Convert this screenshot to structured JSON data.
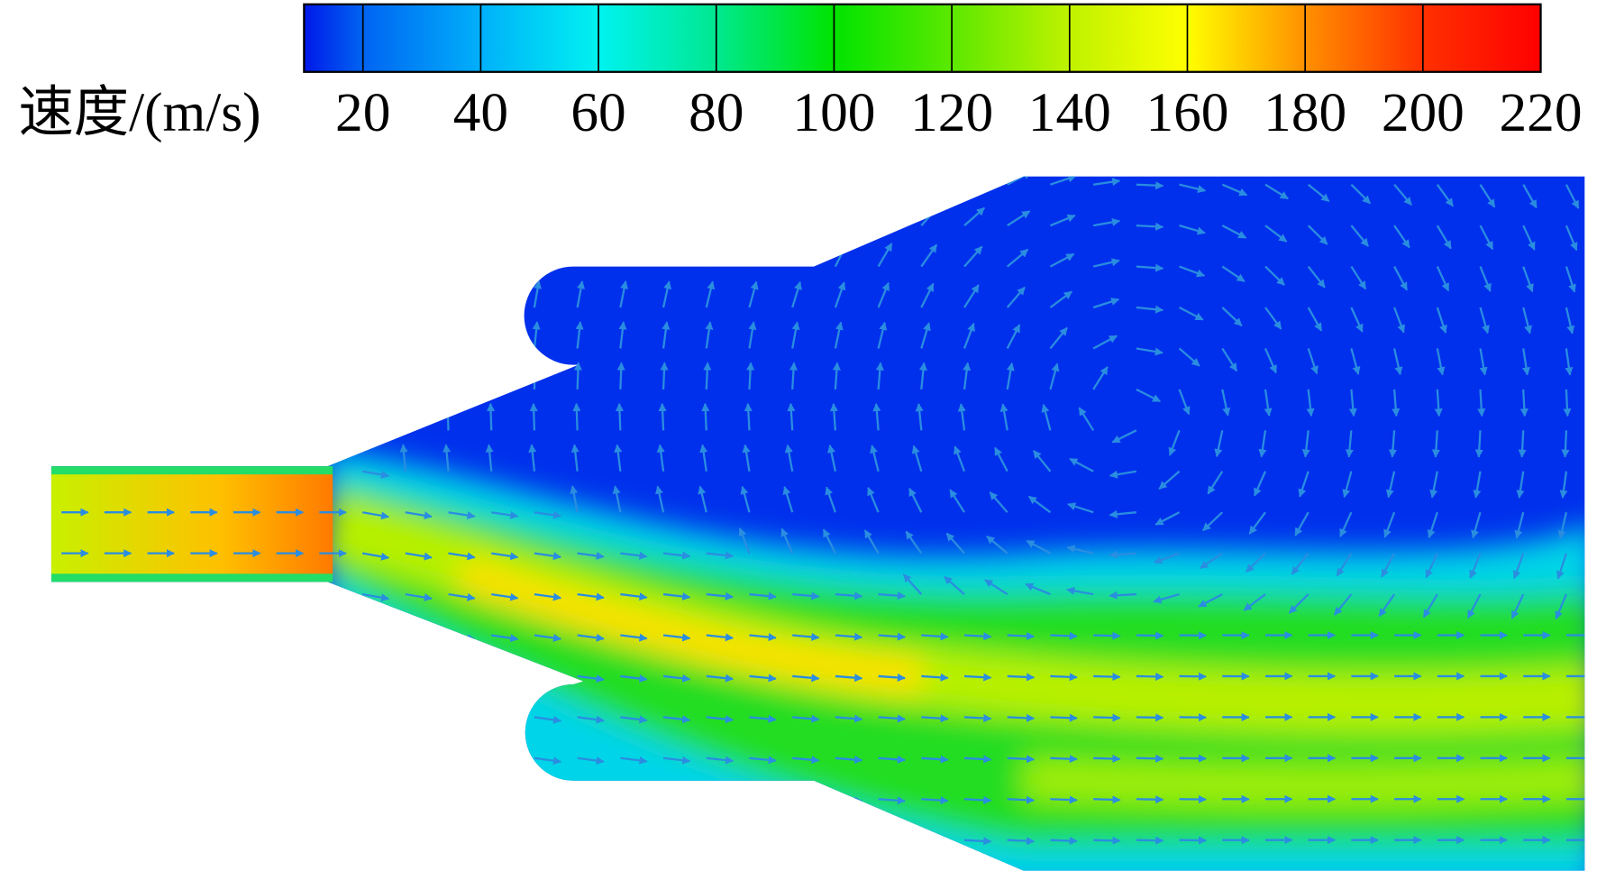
{
  "colorbar": {
    "label": "速度/(m/s)",
    "range": [
      10,
      220
    ],
    "ticks": [
      20,
      40,
      60,
      80,
      100,
      120,
      140,
      160,
      180,
      200,
      220
    ],
    "colors": [
      "#0018e8",
      "#0064f2",
      "#00b0fa",
      "#00f2f0",
      "#00e890",
      "#00e400",
      "#5ce800",
      "#bff200",
      "#ffff00",
      "#ff9000",
      "#ff3000",
      "#ff0000"
    ]
  }
}
